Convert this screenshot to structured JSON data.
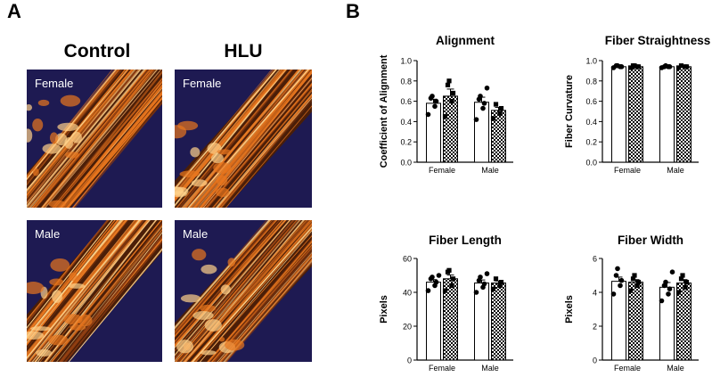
{
  "panel_a": {
    "letter": "A",
    "column_titles": [
      "Control",
      "HLU"
    ],
    "images": [
      {
        "label": "Female",
        "group": "Control"
      },
      {
        "label": "Female",
        "group": "HLU"
      },
      {
        "label": "Male",
        "group": "Control"
      },
      {
        "label": "Male",
        "group": "HLU"
      }
    ]
  },
  "panel_b": {
    "letter": "B"
  },
  "colors": {
    "dark_bg": "#1e1a52",
    "fiber_orange": "#e8761e",
    "fiber_bright": "#ffd28a",
    "fiber_dark": "#4a1e08"
  },
  "chart_data": [
    {
      "type": "bar",
      "title": "Alignment",
      "ylabel": "Coefficient of Alignment",
      "xlabel": "",
      "categories": [
        "Female",
        "Male"
      ],
      "ylim": [
        0.0,
        1.0
      ],
      "yticks": [
        "0.0",
        "0.2",
        "0.4",
        "0.6",
        "0.8",
        "1.0"
      ],
      "series": [
        {
          "fill": "white",
          "marker": "circle",
          "values": [
            0.58,
            0.59
          ],
          "errors": [
            0.04,
            0.05
          ],
          "points": [
            [
              0.47,
              0.55,
              0.6,
              0.63,
              0.65
            ],
            [
              0.42,
              0.53,
              0.58,
              0.62,
              0.65,
              0.73
            ]
          ]
        },
        {
          "fill": "checker",
          "marker": "square",
          "values": [
            0.65,
            0.51
          ],
          "errors": [
            0.07,
            0.03
          ],
          "points": [
            [
              0.45,
              0.6,
              0.68,
              0.76,
              0.8
            ],
            [
              0.43,
              0.48,
              0.53,
              0.57
            ]
          ]
        }
      ]
    },
    {
      "type": "bar",
      "title": "Fiber Straightness",
      "ylabel": "Fiber Curvature",
      "xlabel": "",
      "categories": [
        "Female",
        "Male"
      ],
      "ylim": [
        0.0,
        1.0
      ],
      "yticks": [
        "0.0",
        "0.2",
        "0.4",
        "0.6",
        "0.8",
        "1.0"
      ],
      "series": [
        {
          "fill": "white",
          "marker": "circle",
          "values": [
            0.94,
            0.94
          ],
          "errors": [
            0.005,
            0.005
          ],
          "points": [
            [
              0.93,
              0.94,
              0.94,
              0.95,
              0.95
            ],
            [
              0.93,
              0.94,
              0.94,
              0.94,
              0.95
            ]
          ]
        },
        {
          "fill": "checker",
          "marker": "square",
          "values": [
            0.94,
            0.94
          ],
          "errors": [
            0.005,
            0.005
          ],
          "points": [
            [
              0.93,
              0.94,
              0.94,
              0.95,
              0.95
            ],
            [
              0.93,
              0.94,
              0.94,
              0.95
            ]
          ]
        }
      ]
    },
    {
      "type": "bar",
      "title": "Fiber Length",
      "ylabel": "Pixels",
      "xlabel": "",
      "categories": [
        "Female",
        "Male"
      ],
      "ylim": [
        0,
        60
      ],
      "yticks": [
        "0",
        "20",
        "40",
        "60"
      ],
      "series": [
        {
          "fill": "white",
          "marker": "circle",
          "values": [
            46,
            45.5
          ],
          "errors": [
            1.5,
            1.8
          ],
          "points": [
            [
              41,
              44,
              46,
              48,
              49,
              50
            ],
            [
              40,
              43,
              45,
              47,
              49,
              51
            ]
          ]
        },
        {
          "fill": "checker",
          "marker": "square",
          "values": [
            48,
            45.5
          ],
          "errors": [
            2.2,
            1.2
          ],
          "points": [
            [
              41,
              44,
              48,
              52,
              53
            ],
            [
              42,
              44,
              46,
              48
            ]
          ]
        }
      ]
    },
    {
      "type": "bar",
      "title": "Fiber Width",
      "ylabel": "Pixels",
      "xlabel": "",
      "categories": [
        "Female",
        "Male"
      ],
      "ylim": [
        0,
        6
      ],
      "yticks": [
        "0",
        "2",
        "4",
        "6"
      ],
      "series": [
        {
          "fill": "white",
          "marker": "circle",
          "values": [
            4.65,
            4.3
          ],
          "errors": [
            0.25,
            0.28
          ],
          "points": [
            [
              3.9,
              4.4,
              4.7,
              5.0,
              5.4
            ],
            [
              3.5,
              3.9,
              4.2,
              4.4,
              4.6,
              5.2
            ]
          ]
        },
        {
          "fill": "checker",
          "marker": "square",
          "values": [
            4.6,
            4.55
          ],
          "errors": [
            0.15,
            0.2
          ],
          "points": [
            [
              4.1,
              4.4,
              4.6,
              4.8,
              5.0
            ],
            [
              4.0,
              4.3,
              4.6,
              4.8,
              5.0
            ]
          ]
        }
      ]
    }
  ]
}
